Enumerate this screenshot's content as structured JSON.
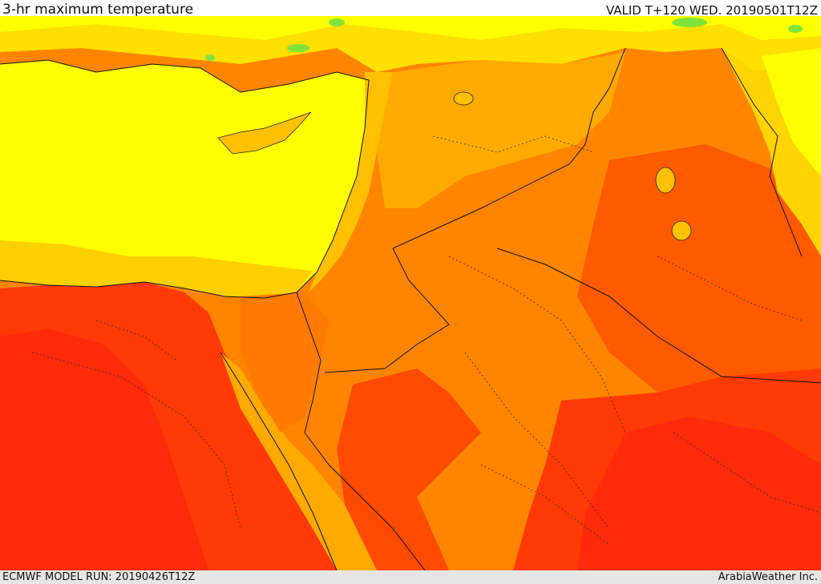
{
  "header": {
    "title": "3-hr maximum temperature",
    "valid": "VALID T+120 WED. 20190501T12Z"
  },
  "footer": {
    "model_run": "ECMWF MODEL RUN: 20190426T12Z",
    "credit": "ArabiaWeather Inc."
  },
  "legend_colors": {
    "cool_green": "#7fe33a",
    "warm_yellow": "#ffff00",
    "light_orange": "#ffd400",
    "orange": "#ffaa00",
    "dark_orange": "#ff8500",
    "red_orange": "#ff5a00",
    "red": "#ff2d0a"
  }
}
